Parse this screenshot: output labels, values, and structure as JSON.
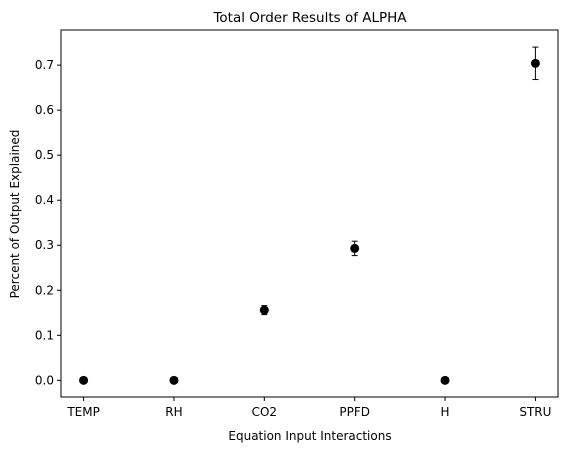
{
  "chart_data": {
    "type": "scatter",
    "title": "Total Order Results of ALPHA",
    "xlabel": "Equation Input Interactions",
    "ylabel": "Percent of Output Explained",
    "categories": [
      "TEMP",
      "RH",
      "CO2",
      "PPFD",
      "H",
      "STRU"
    ],
    "values": [
      0.0,
      0.0,
      0.156,
      0.293,
      0.0,
      0.704
    ],
    "errors": [
      0.0,
      0.0,
      0.01,
      0.016,
      0.0,
      0.036
    ],
    "ylim": [
      -0.037,
      0.778
    ],
    "yticks": [
      0.0,
      0.1,
      0.2,
      0.3,
      0.4,
      0.5,
      0.6,
      0.7
    ],
    "ytick_labels": [
      "0.0",
      "0.1",
      "0.2",
      "0.3",
      "0.4",
      "0.5",
      "0.6",
      "0.7"
    ],
    "grid": false,
    "legend": "none",
    "marker_color": "#000000"
  }
}
